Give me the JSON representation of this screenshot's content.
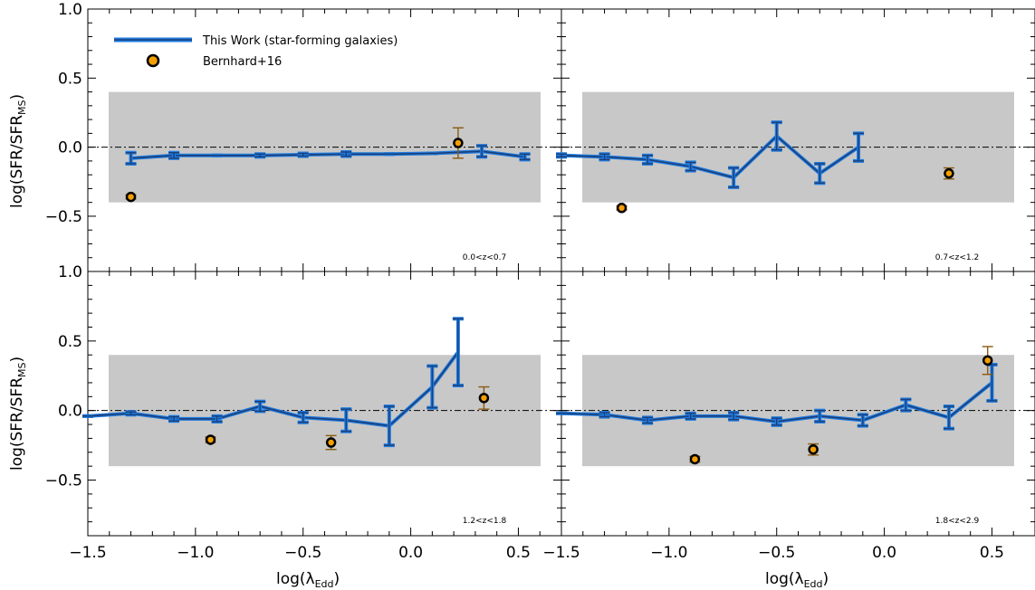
{
  "figure": {
    "ylabel_main": "log(SFR/SFR",
    "ylabel_sub": "MS",
    "ylabel_close": ")",
    "xlabel_main": "log(λ",
    "xlabel_sub": "Edd",
    "xlabel_close": ")"
  },
  "legend": {
    "this_work": "This Work (star-forming galaxies)",
    "bernhard": "Bernhard+16"
  },
  "colors": {
    "line_dark": "#1c3f78",
    "line_light": "#1e7be0",
    "band": "#c8c8c8",
    "marker_fill": "#f5a000",
    "marker_edge": "#000000",
    "marker_err": "#8a5a10"
  },
  "chart_data": [
    {
      "type": "line",
      "panel": "top-left",
      "annotation": "0.0<z<0.7",
      "xlim": [
        -1.5,
        0.7
      ],
      "ylim": [
        -0.9,
        1.0
      ],
      "yticks": [
        -0.5,
        0.0,
        0.5,
        1.0
      ],
      "xticks": [
        -1.5,
        -1.0,
        -0.5,
        0.0,
        0.5
      ],
      "band": [
        -0.4,
        0.4
      ],
      "reference_line": 0.0,
      "series": [
        {
          "name": "This Work (star-forming galaxies)",
          "x": [
            -1.3,
            -1.1,
            -0.9,
            -0.7,
            -0.5,
            -0.3,
            -0.1,
            0.1,
            0.33,
            0.53
          ],
          "y": [
            -0.08,
            -0.06,
            -0.06,
            -0.06,
            -0.055,
            -0.05,
            -0.05,
            -0.045,
            -0.03,
            -0.07
          ],
          "err": [
            0.04,
            0.02,
            0.0,
            0.01,
            0.01,
            0.015,
            0.0,
            0.0,
            0.04,
            0.02
          ]
        },
        {
          "name": "Bernhard+16",
          "x": [
            -1.3,
            0.22
          ],
          "y": [
            -0.36,
            0.03
          ],
          "err": [
            0.015,
            0.11
          ]
        }
      ]
    },
    {
      "type": "line",
      "panel": "top-right",
      "annotation": "0.7<z<1.2",
      "xlim": [
        -1.5,
        0.7
      ],
      "ylim": [
        -0.9,
        1.0
      ],
      "yticks": [
        -0.5,
        0.0,
        0.5,
        1.0
      ],
      "xticks": [
        -1.5,
        -1.0,
        -0.5,
        0.0,
        0.5
      ],
      "band": [
        -0.4,
        0.4
      ],
      "reference_line": 0.0,
      "series": [
        {
          "name": "This Work (star-forming galaxies)",
          "x": [
            -1.5,
            -1.3,
            -1.1,
            -0.9,
            -0.7,
            -0.5,
            -0.3,
            -0.12
          ],
          "y": [
            -0.06,
            -0.07,
            -0.09,
            -0.14,
            -0.22,
            0.08,
            -0.19,
            0.0
          ],
          "err": [
            0.01,
            0.02,
            0.03,
            0.03,
            0.07,
            0.1,
            0.07,
            0.1
          ]
        },
        {
          "name": "Bernhard+16",
          "x": [
            -1.22,
            0.3
          ],
          "y": [
            -0.44,
            -0.19
          ],
          "err": [
            0.015,
            0.04
          ]
        }
      ]
    },
    {
      "type": "line",
      "panel": "bottom-left",
      "annotation": "1.2<z<1.8",
      "xlim": [
        -1.5,
        0.7
      ],
      "ylim": [
        -0.9,
        1.0
      ],
      "yticks": [
        -0.5,
        0.0,
        0.5,
        1.0
      ],
      "xticks": [
        -1.5,
        -1.0,
        -0.5,
        0.0,
        0.5
      ],
      "band": [
        -0.4,
        0.4
      ],
      "reference_line": 0.0,
      "series": [
        {
          "name": "This Work (star-forming galaxies)",
          "x": [
            -1.5,
            -1.3,
            -1.1,
            -0.9,
            -0.7,
            -0.5,
            -0.3,
            -0.1,
            0.1,
            0.22
          ],
          "y": [
            -0.04,
            -0.02,
            -0.06,
            -0.06,
            0.03,
            -0.05,
            -0.07,
            -0.11,
            0.17,
            0.42
          ],
          "err": [
            0.0,
            0.01,
            0.015,
            0.02,
            0.035,
            0.035,
            0.08,
            0.14,
            0.15,
            0.24
          ]
        },
        {
          "name": "Bernhard+16",
          "x": [
            -0.93,
            -0.37,
            0.34
          ],
          "y": [
            -0.21,
            -0.23,
            0.09
          ],
          "err": [
            0.02,
            0.05,
            0.08
          ]
        }
      ]
    },
    {
      "type": "line",
      "panel": "bottom-right",
      "annotation": "1.8<z<2.9",
      "xlim": [
        -1.5,
        0.7
      ],
      "ylim": [
        -0.9,
        1.0
      ],
      "yticks": [
        -0.5,
        0.0,
        0.5,
        1.0
      ],
      "xticks": [
        -1.5,
        -1.0,
        -0.5,
        0.0,
        0.5
      ],
      "band": [
        -0.4,
        0.4
      ],
      "reference_line": 0.0,
      "series": [
        {
          "name": "This Work (star-forming galaxies)",
          "x": [
            -1.5,
            -1.3,
            -1.1,
            -0.9,
            -0.7,
            -0.5,
            -0.3,
            -0.1,
            0.1,
            0.3,
            0.5
          ],
          "y": [
            -0.02,
            -0.03,
            -0.07,
            -0.04,
            -0.04,
            -0.08,
            -0.04,
            -0.07,
            0.04,
            -0.05,
            0.2
          ],
          "err": [
            0.0,
            0.015,
            0.02,
            0.02,
            0.025,
            0.025,
            0.04,
            0.04,
            0.04,
            0.08,
            0.13
          ]
        },
        {
          "name": "Bernhard+16",
          "x": [
            -0.88,
            -0.33,
            0.48
          ],
          "y": [
            -0.35,
            -0.28,
            0.36
          ],
          "err": [
            0.02,
            0.04,
            0.1
          ]
        }
      ]
    }
  ]
}
